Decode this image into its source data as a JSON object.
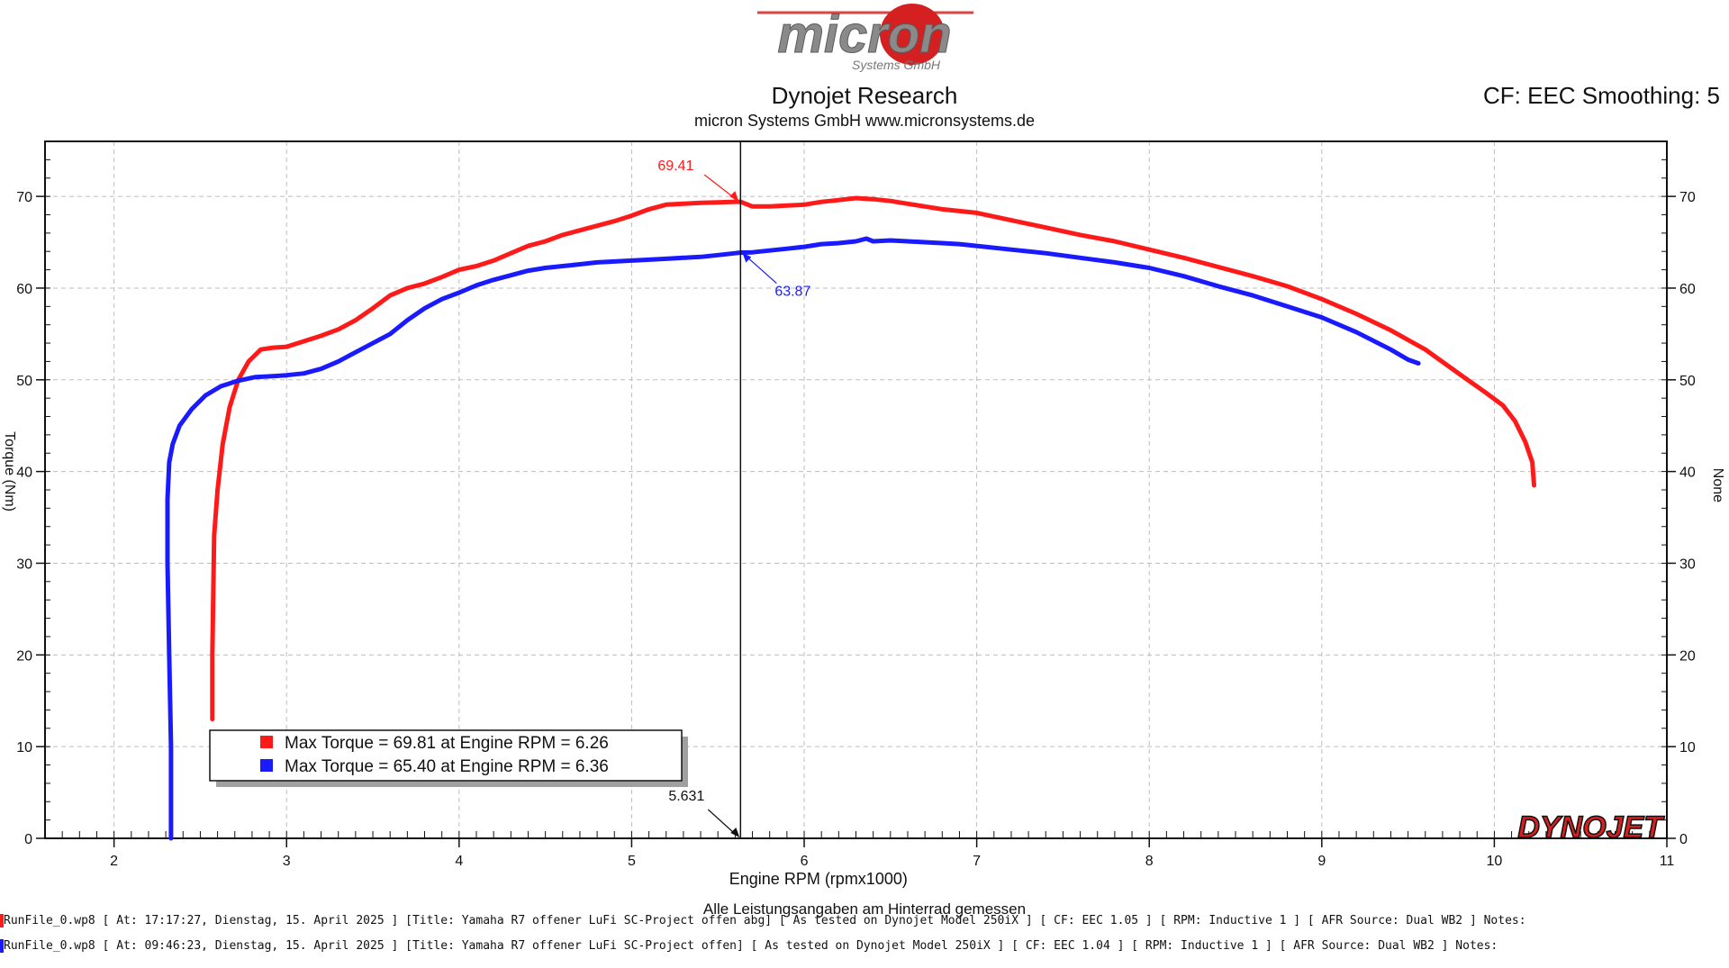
{
  "header": {
    "logo_text": "micron",
    "logo_subtext": "Systems GmbH",
    "title": "Dynojet Research",
    "subtitle": "micron Systems GmbH  www.micronsystems.de",
    "cf_info": "CF: EEC Smoothing: 5",
    "brand_logo": "DYNOJET"
  },
  "chart_data": {
    "type": "line",
    "title": "Dynojet Research",
    "xlabel": "Engine RPM (rpmx1000)",
    "ylabel": "Torque (Nm)",
    "ylabel_right": "None",
    "xlim": [
      1.6,
      11
    ],
    "ylim": [
      0,
      76
    ],
    "x_ticks": [
      "2",
      "3",
      "4",
      "5",
      "6",
      "7",
      "8",
      "9",
      "10",
      "11"
    ],
    "y_ticks": [
      "0",
      "10",
      "20",
      "30",
      "40",
      "50",
      "60",
      "70"
    ],
    "grid": true,
    "legend_position": "bottom-left",
    "series": [
      {
        "legend_label": "Max Torque = 69.81 at Engine RPM = 6.26",
        "color": "#ff1a1a",
        "x": [
          2.57,
          2.57,
          2.58,
          2.6,
          2.63,
          2.67,
          2.72,
          2.78,
          2.85,
          2.92,
          3.0,
          3.1,
          3.2,
          3.3,
          3.4,
          3.5,
          3.6,
          3.7,
          3.8,
          3.9,
          4.0,
          4.1,
          4.2,
          4.3,
          4.4,
          4.5,
          4.6,
          4.7,
          4.8,
          4.9,
          5.0,
          5.1,
          5.2,
          5.3,
          5.4,
          5.5,
          5.6,
          5.631,
          5.7,
          5.8,
          5.9,
          6.0,
          6.1,
          6.2,
          6.3,
          6.4,
          6.5,
          6.6,
          6.7,
          6.8,
          6.9,
          7.0,
          7.2,
          7.4,
          7.6,
          7.8,
          8.0,
          8.2,
          8.4,
          8.6,
          8.8,
          9.0,
          9.2,
          9.4,
          9.6,
          9.8,
          9.95,
          10.05,
          10.12,
          10.18,
          10.22,
          10.23
        ],
        "y": [
          13,
          20,
          33,
          38,
          43,
          47,
          50,
          52,
          53.3,
          53.5,
          53.6,
          54.2,
          54.8,
          55.5,
          56.5,
          57.8,
          59.2,
          60.0,
          60.5,
          61.2,
          62.0,
          62.4,
          63.0,
          63.8,
          64.6,
          65.1,
          65.8,
          66.3,
          66.8,
          67.3,
          67.9,
          68.6,
          69.1,
          69.2,
          69.3,
          69.35,
          69.41,
          69.41,
          68.9,
          68.9,
          69.0,
          69.1,
          69.4,
          69.6,
          69.81,
          69.7,
          69.5,
          69.2,
          68.9,
          68.6,
          68.4,
          68.2,
          67.4,
          66.6,
          65.8,
          65.1,
          64.2,
          63.3,
          62.3,
          61.3,
          60.2,
          58.8,
          57.2,
          55.4,
          53.3,
          50.6,
          48.6,
          47.2,
          45.5,
          43.2,
          41.0,
          38.5
        ]
      },
      {
        "legend_label": "Max Torque = 65.40 at Engine RPM = 6.36",
        "color": "#1a1aff",
        "x": [
          2.33,
          2.33,
          2.32,
          2.31,
          2.31,
          2.32,
          2.34,
          2.38,
          2.45,
          2.53,
          2.62,
          2.72,
          2.82,
          2.92,
          3.0,
          3.1,
          3.2,
          3.3,
          3.4,
          3.5,
          3.6,
          3.7,
          3.8,
          3.9,
          4.0,
          4.1,
          4.2,
          4.3,
          4.4,
          4.5,
          4.6,
          4.7,
          4.8,
          4.9,
          5.0,
          5.1,
          5.2,
          5.3,
          5.4,
          5.5,
          5.6,
          5.631,
          5.7,
          5.8,
          5.9,
          6.0,
          6.1,
          6.2,
          6.3,
          6.36,
          6.4,
          6.5,
          6.6,
          6.7,
          6.8,
          6.9,
          7.0,
          7.2,
          7.4,
          7.6,
          7.8,
          8.0,
          8.2,
          8.4,
          8.6,
          8.8,
          9.0,
          9.2,
          9.4,
          9.5,
          9.56
        ],
        "y": [
          0,
          10,
          20,
          30,
          37,
          41,
          43,
          45,
          46.8,
          48.3,
          49.3,
          49.9,
          50.3,
          50.4,
          50.5,
          50.7,
          51.2,
          52.0,
          53.0,
          54.0,
          55.0,
          56.5,
          57.8,
          58.8,
          59.5,
          60.3,
          60.9,
          61.4,
          61.9,
          62.2,
          62.4,
          62.6,
          62.8,
          62.9,
          63.0,
          63.1,
          63.2,
          63.3,
          63.4,
          63.6,
          63.8,
          63.87,
          63.9,
          64.1,
          64.3,
          64.5,
          64.8,
          64.9,
          65.1,
          65.4,
          65.1,
          65.2,
          65.1,
          65.0,
          64.9,
          64.8,
          64.6,
          64.2,
          63.8,
          63.3,
          62.8,
          62.2,
          61.3,
          60.2,
          59.2,
          58.0,
          56.8,
          55.2,
          53.3,
          52.2,
          51.8
        ]
      }
    ],
    "annotations": [
      {
        "text": "69.41",
        "x": 5.631,
        "y": 69.41,
        "color": "#ff1a1a"
      },
      {
        "text": "63.87",
        "x": 5.631,
        "y": 63.87,
        "color": "#1a1aff"
      },
      {
        "text": "5.631",
        "x": 5.631,
        "y": 0,
        "color": "#111111"
      }
    ],
    "cursor_x": 5.631
  },
  "footer": {
    "note": "Alle Leistungsangaben am Hinterrad gemessen",
    "run_lines": [
      {
        "text": "RunFile_0.wp8 [ At:  17:17:27,  Dienstag,  15.  April  2025 ]  [Title:  Yamaha  R7  offener  LuFi  SC-Project  offen  abg]   [ As  tested  on  Dynojet  Model  250iX  ]  [  CF:  EEC  1.05  ]  [  RPM:  Inductive  1  ]  [  AFR  Source:  Dual  WB2  ]  Notes:",
        "color": "#ff1a1a"
      },
      {
        "text": "RunFile_0.wp8 [ At:  09:46:23,  Dienstag,  15.  April  2025 ]  [Title:  Yamaha  R7  offener  LuFi  SC-Project  offen]   [ As  tested  on  Dynojet  Model  250iX  ]  [  CF:  EEC  1.04  ]  [  RPM:  Inductive  1  ]  [  AFR  Source:  Dual  WB2  ]  Notes:",
        "color": "#1a1aff"
      }
    ]
  }
}
